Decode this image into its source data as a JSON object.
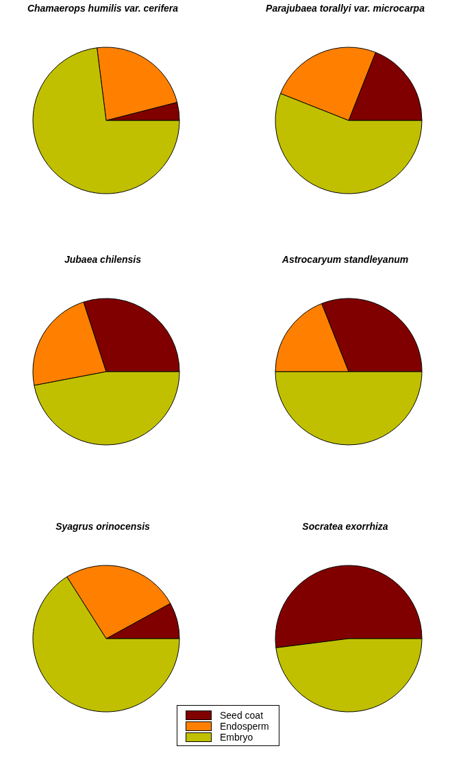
{
  "chart_data": [
    {
      "type": "pie",
      "title": "Chamaerops humilis var. cerifera",
      "categories": [
        "Seed coat",
        "Endosperm",
        "Embryo"
      ],
      "values": [
        4,
        23,
        73
      ],
      "colors": [
        "#800000",
        "#ff8000",
        "#c0c000"
      ],
      "legend": "bottom"
    },
    {
      "type": "pie",
      "title": "Parajubaea torallyi var. microcarpa",
      "categories": [
        null,
        null,
        null
      ],
      "values": [
        19,
        25,
        56
      ],
      "colors": [
        "#800000",
        "#ff8000",
        "#c0c000"
      ]
    },
    {
      "type": "pie",
      "title": "Jubaea chilensis",
      "categories": [
        null,
        null,
        null
      ],
      "values": [
        30,
        23,
        47
      ],
      "colors": [
        "#800000",
        "#ff8000",
        "#c0c000"
      ]
    },
    {
      "type": "pie",
      "title": "Astrocaryum standleyanum",
      "categories": [
        null,
        null,
        null
      ],
      "values": [
        31,
        19,
        50
      ],
      "colors": [
        "#800000",
        "#ff8000",
        "#c0c000"
      ]
    },
    {
      "type": "pie",
      "title": "Syagrus orinocensis",
      "categories": [
        null,
        null,
        null
      ],
      "values": [
        8,
        26,
        66
      ],
      "colors": [
        "#800000",
        "#ff8000",
        "#c0c000"
      ]
    },
    {
      "type": "pie",
      "title": "Socratea exorrhiza",
      "categories": [
        null,
        null,
        null
      ],
      "values": [
        52,
        0,
        48
      ],
      "colors": [
        "#800000",
        "#ff8000",
        "#c0c000"
      ]
    }
  ]
}
